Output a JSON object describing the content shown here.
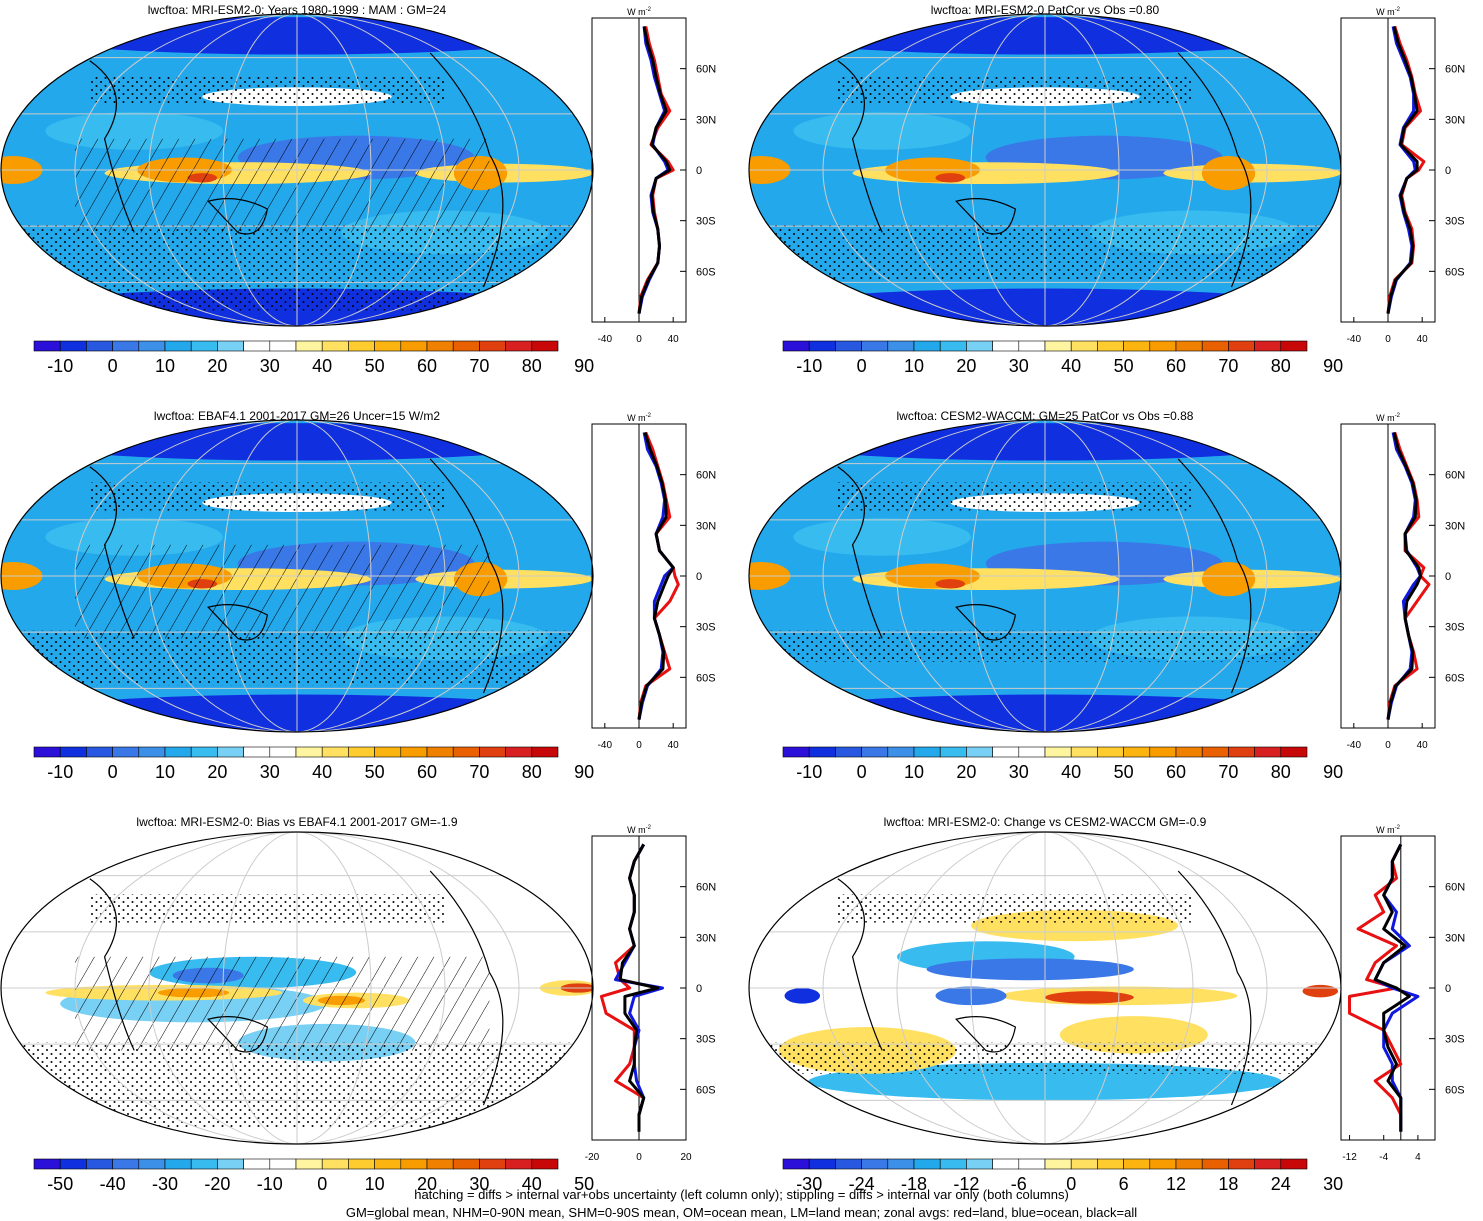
{
  "panels": [
    {
      "title": "lwcftoa: MRI-ESM2-0: Years 1980-1999 : MAM : GM=24",
      "scale": "abs",
      "hatch": true,
      "stipple": "heavy"
    },
    {
      "title": "lwcftoa: MRI-ESM2-0 PatCor vs Obs =0.80",
      "scale": "abs",
      "hatch": false,
      "stipple": "medium"
    },
    {
      "title": "lwcftoa: EBAF4.1 2001-2017 GM=26 Uncer=15 W/m2",
      "scale": "abs",
      "hatch": true,
      "stipple": "medium"
    },
    {
      "title": "lwcftoa: CESM2-WACCM: GM=25 PatCor vs Obs =0.88",
      "scale": "abs",
      "hatch": false,
      "stipple": "light"
    },
    {
      "title": "lwcftoa: MRI-ESM2-0: Bias vs EBAF4.1 2001-2017 GM=-1.9",
      "scale": "bias",
      "hatch": true,
      "stipple": "heavy"
    },
    {
      "title": "lwcftoa: MRI-ESM2-0: Change vs CESM2-WACCM GM=-0.9",
      "scale": "change",
      "hatch": false,
      "stipple": "light"
    }
  ],
  "colorbars": {
    "abs": {
      "labels": [
        "-10",
        "0",
        "10",
        "20",
        "30",
        "40",
        "50",
        "60",
        "70",
        "80",
        "90"
      ],
      "colors": [
        "#2a10d8",
        "#1030e0",
        "#2858e0",
        "#3a78e8",
        "#3c90e8",
        "#24a8ec",
        "#38bcf0",
        "#78d0f4",
        "#ffffff",
        "#ffffff",
        "#fff4a0",
        "#ffe060",
        "#ffcc30",
        "#fbb410",
        "#f89c00",
        "#f08000",
        "#e86000",
        "#e04010",
        "#d82020",
        "#c80808"
      ]
    },
    "bias": {
      "labels": [
        "-50",
        "-40",
        "-30",
        "-20",
        "-10",
        "0",
        "10",
        "20",
        "30",
        "40",
        "50"
      ],
      "colors": [
        "#2a10d8",
        "#1030e0",
        "#2858e0",
        "#3a78e8",
        "#3c90e8",
        "#24a8ec",
        "#38bcf0",
        "#78d0f4",
        "#ffffff",
        "#ffffff",
        "#fff4a0",
        "#ffe060",
        "#ffcc30",
        "#fbb410",
        "#f89c00",
        "#f08000",
        "#e86000",
        "#e04010",
        "#d82020",
        "#c80808"
      ]
    },
    "change": {
      "labels": [
        "-30",
        "-24",
        "-18",
        "-12",
        "-6",
        "0",
        "6",
        "12",
        "18",
        "24",
        "30"
      ],
      "colors": [
        "#2a10d8",
        "#1030e0",
        "#2858e0",
        "#3a78e8",
        "#3c90e8",
        "#24a8ec",
        "#38bcf0",
        "#78d0f4",
        "#ffffff",
        "#ffffff",
        "#fff4a0",
        "#ffe060",
        "#ffcc30",
        "#fbb410",
        "#f89c00",
        "#f08000",
        "#e86000",
        "#e04010",
        "#d82020",
        "#c80808"
      ]
    }
  },
  "zonal_axes": {
    "unit": "W m",
    "unit_exponent": "-2",
    "lat_labels": [
      "60N",
      "30N",
      "0",
      "30S",
      "60S"
    ],
    "lat_values": [
      60,
      30,
      0,
      -30,
      -60
    ],
    "abs_ticks": [
      "-40",
      "0",
      "40"
    ],
    "abs_tick_values": [
      -40,
      0,
      40
    ],
    "abs_range": [
      -55,
      55
    ],
    "bias_ticks": [
      "-20",
      "0",
      "20"
    ],
    "bias_tick_values": [
      -20,
      0,
      20
    ],
    "bias_range": [
      -20,
      20
    ],
    "change_ticks": [
      "-12",
      "-4",
      "4"
    ],
    "change_tick_values": [
      -12,
      -4,
      4
    ],
    "change_range": [
      -14,
      8
    ]
  },
  "colors": {
    "land": "#e81010",
    "ocean": "#1018e0",
    "all": "#000000"
  },
  "footer": {
    "line1": "hatching = diffs > internal var+obs uncertainty (left column only); stippling = diffs > internal var only (both columns)",
    "line2": "GM=global mean, NHM=0-90N mean, SHM=0-90S mean, OM=ocean mean, LM=land mean; zonal avgs: red=land, blue=ocean, black=all"
  },
  "chart_data": [
    {
      "type": "heatmap",
      "title": "lwcftoa: MRI-ESM2-0: Years 1980-1999 : MAM : GM=24",
      "colorbar_range": [
        -15,
        95
      ],
      "zonal_avg": {
        "lat": [
          85,
          75,
          65,
          55,
          45,
          35,
          25,
          15,
          5,
          0,
          -5,
          -15,
          -25,
          -35,
          -45,
          -55,
          -65,
          -75,
          -85
        ],
        "land": [
          8,
          12,
          18,
          22,
          26,
          36,
          22,
          14,
          34,
          40,
          20,
          16,
          18,
          22,
          24,
          22,
          10,
          2,
          0
        ],
        "ocean": [
          6,
          8,
          14,
          18,
          24,
          30,
          20,
          16,
          30,
          34,
          20,
          14,
          16,
          22,
          24,
          22,
          12,
          4,
          0
        ],
        "all": [
          6,
          10,
          16,
          20,
          25,
          32,
          20,
          15,
          32,
          36,
          20,
          15,
          17,
          22,
          24,
          22,
          11,
          3,
          0
        ]
      }
    },
    {
      "type": "heatmap",
      "title": "lwcftoa: MRI-ESM2-0 PatCor vs Obs =0.80",
      "colorbar_range": [
        -15,
        95
      ],
      "zonal_avg": {
        "lat": [
          85,
          75,
          65,
          55,
          45,
          35,
          25,
          15,
          5,
          0,
          -5,
          -15,
          -25,
          -35,
          -45,
          -55,
          -65,
          -75,
          -85
        ],
        "land": [
          8,
          14,
          22,
          28,
          32,
          38,
          20,
          16,
          42,
          36,
          22,
          16,
          20,
          28,
          30,
          28,
          8,
          2,
          0
        ],
        "ocean": [
          6,
          10,
          18,
          26,
          30,
          30,
          18,
          14,
          30,
          32,
          22,
          14,
          18,
          24,
          28,
          26,
          10,
          4,
          0
        ],
        "all": [
          7,
          12,
          20,
          27,
          31,
          34,
          19,
          15,
          34,
          34,
          22,
          15,
          19,
          26,
          29,
          27,
          9,
          3,
          0
        ]
      }
    },
    {
      "type": "heatmap",
      "title": "lwcftoa: EBAF4.1 2001-2017 GM=26 Uncer=15 W/m2",
      "colorbar_range": [
        -15,
        95
      ],
      "zonal_avg": {
        "lat": [
          85,
          75,
          65,
          55,
          45,
          35,
          25,
          15,
          5,
          0,
          -5,
          -15,
          -25,
          -35,
          -45,
          -55,
          -65,
          -75,
          -85
        ],
        "land": [
          8,
          16,
          22,
          28,
          32,
          36,
          20,
          24,
          40,
          42,
          46,
          36,
          18,
          24,
          30,
          36,
          8,
          2,
          0
        ],
        "ocean": [
          6,
          10,
          20,
          26,
          30,
          28,
          20,
          24,
          40,
          30,
          26,
          18,
          18,
          24,
          28,
          26,
          10,
          4,
          0
        ],
        "all": [
          7,
          13,
          21,
          27,
          31,
          32,
          20,
          24,
          40,
          34,
          30,
          22,
          18,
          24,
          29,
          28,
          9,
          3,
          0
        ]
      }
    },
    {
      "type": "heatmap",
      "title": "lwcftoa: CESM2-WACCM: GM=25 PatCor vs Obs =0.88",
      "colorbar_range": [
        -15,
        95
      ],
      "zonal_avg": {
        "lat": [
          85,
          75,
          65,
          55,
          45,
          35,
          25,
          15,
          5,
          0,
          -5,
          -15,
          -25,
          -35,
          -45,
          -55,
          -65,
          -75,
          -85
        ],
        "land": [
          8,
          14,
          22,
          30,
          34,
          36,
          20,
          20,
          42,
          38,
          48,
          34,
          20,
          24,
          30,
          34,
          8,
          2,
          0
        ],
        "ocean": [
          6,
          10,
          20,
          28,
          32,
          30,
          20,
          22,
          34,
          38,
          30,
          18,
          20,
          24,
          28,
          26,
          10,
          4,
          0
        ],
        "all": [
          7,
          12,
          21,
          29,
          33,
          32,
          20,
          21,
          36,
          38,
          34,
          22,
          20,
          24,
          29,
          28,
          9,
          3,
          0
        ]
      }
    },
    {
      "type": "heatmap",
      "title": "lwcftoa: MRI-ESM2-0: Bias vs EBAF4.1 2001-2017 GM=-1.9",
      "colorbar_range": [
        -55,
        55
      ],
      "zonal_avg": {
        "lat": [
          85,
          75,
          65,
          55,
          45,
          35,
          25,
          15,
          5,
          0,
          -5,
          -15,
          -25,
          -35,
          -45,
          -55,
          -65,
          -75,
          -85
        ],
        "land": [
          2,
          -2,
          -4,
          -2,
          -2,
          -4,
          -2,
          -10,
          -8,
          -4,
          -16,
          -14,
          -2,
          -2,
          -4,
          -10,
          2,
          0,
          0
        ],
        "ocean": [
          2,
          -2,
          -4,
          -2,
          -2,
          -4,
          -2,
          -6,
          -10,
          10,
          -2,
          -4,
          0,
          -2,
          -2,
          -1,
          2,
          0,
          0
        ],
        "all": [
          2,
          -2,
          -4,
          -2,
          -2,
          -4,
          -2,
          -7,
          -8,
          8,
          -6,
          -6,
          -1,
          -2,
          -2,
          -4,
          2,
          0,
          0
        ]
      }
    },
    {
      "type": "heatmap",
      "title": "lwcftoa: MRI-ESM2-0: Change vs CESM2-WACCM GM=-0.9",
      "colorbar_range": [
        -33,
        33
      ],
      "zonal_avg": {
        "lat": [
          85,
          75,
          65,
          55,
          45,
          35,
          25,
          15,
          5,
          0,
          -5,
          -15,
          -25,
          -35,
          -45,
          -55,
          -65,
          -75,
          -85
        ],
        "land": [
          0,
          -2,
          -1,
          -6,
          -4,
          -10,
          -1,
          -6,
          -8,
          -1,
          -12,
          -12,
          -4,
          -2,
          0,
          -6,
          -2,
          0,
          0
        ],
        "ocean": [
          0,
          -2,
          -2,
          -4,
          -1,
          -2,
          2,
          -4,
          -6,
          -2,
          4,
          -2,
          -4,
          -4,
          -2,
          -2,
          0,
          0,
          0
        ],
        "all": [
          0,
          -2,
          -2,
          -4,
          -2,
          -4,
          1,
          -4,
          -6,
          -1,
          2,
          -4,
          -4,
          -3,
          -1,
          -3,
          0,
          0,
          0
        ]
      }
    }
  ]
}
